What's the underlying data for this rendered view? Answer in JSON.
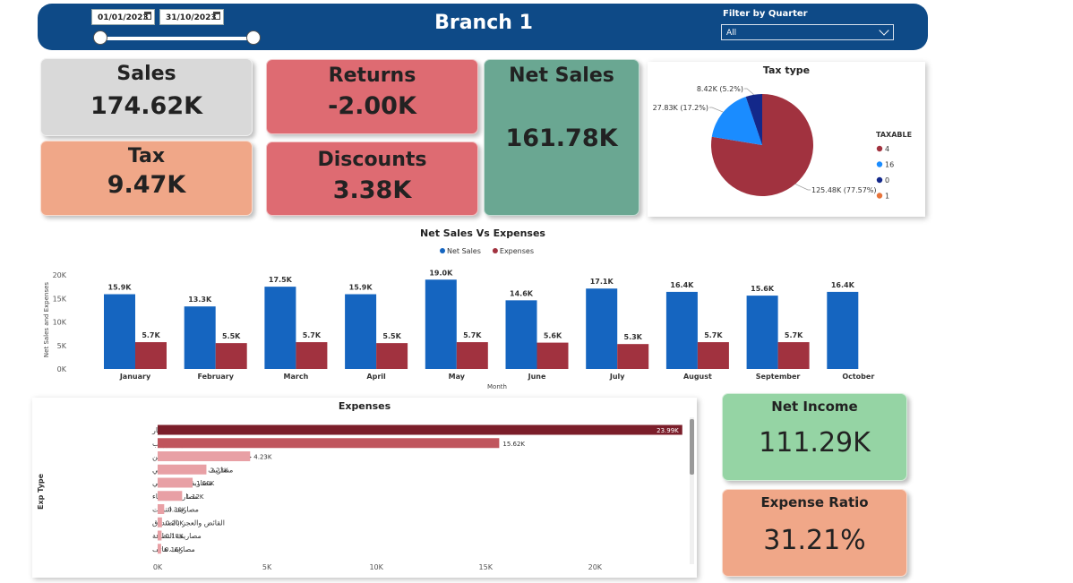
{
  "header": {
    "title": "Branch 1",
    "start_date": "01/01/2023",
    "end_date": "31/10/2023",
    "filter_label": "Filter by Quarter",
    "filter_value": "All"
  },
  "cards": {
    "sales": {
      "label": "Sales",
      "value": "174.62K"
    },
    "tax": {
      "label": "Tax",
      "value": "9.47K"
    },
    "returns": {
      "label": "Returns",
      "value": "-2.00K"
    },
    "discounts": {
      "label": "Discounts",
      "value": "3.38K"
    },
    "net_sales": {
      "label": "Net Sales",
      "value": "161.78K"
    },
    "net_income": {
      "label": "Net Income",
      "value": "111.29K"
    },
    "expense_ratio": {
      "label": "Expense Ratio",
      "value": "31.21%"
    }
  },
  "colors": {
    "header": "#0e4a87",
    "sales_card": "#d9d9d9",
    "tax_card": "#f0a788",
    "returns_card": "#de6b72",
    "net_sales_card": "#6aa792",
    "net_income_card": "#95d4a4",
    "expense_ratio_card": "#f0a788",
    "net_sales_bar": "#1565c0",
    "expenses_bar": "#a1323f"
  },
  "chart_data": [
    {
      "type": "pie",
      "title": "Tax type",
      "legend_title": "TAXABLE",
      "legend_position": "right",
      "slices": [
        {
          "name": "4",
          "value": 125.48,
          "label": "125.48K (77.57%)",
          "color": "#a1323f"
        },
        {
          "name": "16",
          "value": 27.83,
          "label": "27.83K (17.2%)",
          "color": "#1a8cff"
        },
        {
          "name": "0",
          "value": 8.42,
          "label": "8.42K (5.2%)",
          "color": "#13288a"
        },
        {
          "name": "1",
          "value": 0,
          "label": "",
          "color": "#e8743b"
        }
      ]
    },
    {
      "type": "bar",
      "title": "Net Sales Vs Expenses",
      "xlabel": "Month",
      "ylabel": "Net Sales and Expenses",
      "ylim": [
        0,
        20000
      ],
      "yticks": [
        "0K",
        "5K",
        "10K",
        "15K",
        "20K"
      ],
      "legend_position": "top",
      "categories": [
        "January",
        "February",
        "March",
        "April",
        "May",
        "June",
        "July",
        "August",
        "September",
        "October"
      ],
      "series": [
        {
          "name": "Net Sales",
          "color": "#1565c0",
          "values": [
            15900,
            13300,
            17500,
            15900,
            19000,
            14600,
            17100,
            16400,
            15600,
            16400
          ],
          "labels": [
            "15.9K",
            "13.3K",
            "17.5K",
            "15.9K",
            "19.0K",
            "14.6K",
            "17.1K",
            "16.4K",
            "15.6K",
            "16.4K"
          ]
        },
        {
          "name": "Expenses",
          "color": "#a1323f",
          "values": [
            5700,
            5500,
            5700,
            5500,
            5700,
            5600,
            5300,
            5700,
            5700,
            null
          ],
          "labels": [
            "5.7K",
            "5.5K",
            "5.7K",
            "5.5K",
            "5.7K",
            "5.6K",
            "5.3K",
            "5.7K",
            "5.7K",
            ""
          ]
        }
      ]
    },
    {
      "type": "bar",
      "orientation": "horizontal",
      "title": "Expenses",
      "ylabel": "Exp Type",
      "xlim": [
        0,
        24000
      ],
      "xticks": [
        "0K",
        "5K",
        "10K",
        "15K",
        "20K"
      ],
      "categories": [
        "مصاريف ايجار",
        "مصاريف رواتب",
        "خصومات تعاقديه -شركات التأمين",
        "مصاريف الضمان الاجتماعي",
        "مصاريف بدل اضافي",
        "مصاريف كهرباء",
        "مصاريف انترنت",
        "القائض والعجز بالصندوق",
        "مصاريف النظافة",
        "مصاريف هاتف"
      ],
      "values": [
        23990,
        15620,
        4230,
        2230,
        1600,
        1120,
        300,
        200,
        180,
        160
      ],
      "labels": [
        "23.99K",
        "15.62K",
        "4.23K",
        "2.23K",
        "1.60K",
        "1.12K",
        "0.30K",
        "0.20K",
        "0.18K",
        "0.16K"
      ],
      "colors": [
        "#7b1e2a",
        "#c0555d",
        "#e8a0a5",
        "#e8a0a5",
        "#e8a0a5",
        "#e8a0a5",
        "#e8a0a5",
        "#e8a0a5",
        "#e8a0a5",
        "#e8a0a5"
      ]
    }
  ]
}
